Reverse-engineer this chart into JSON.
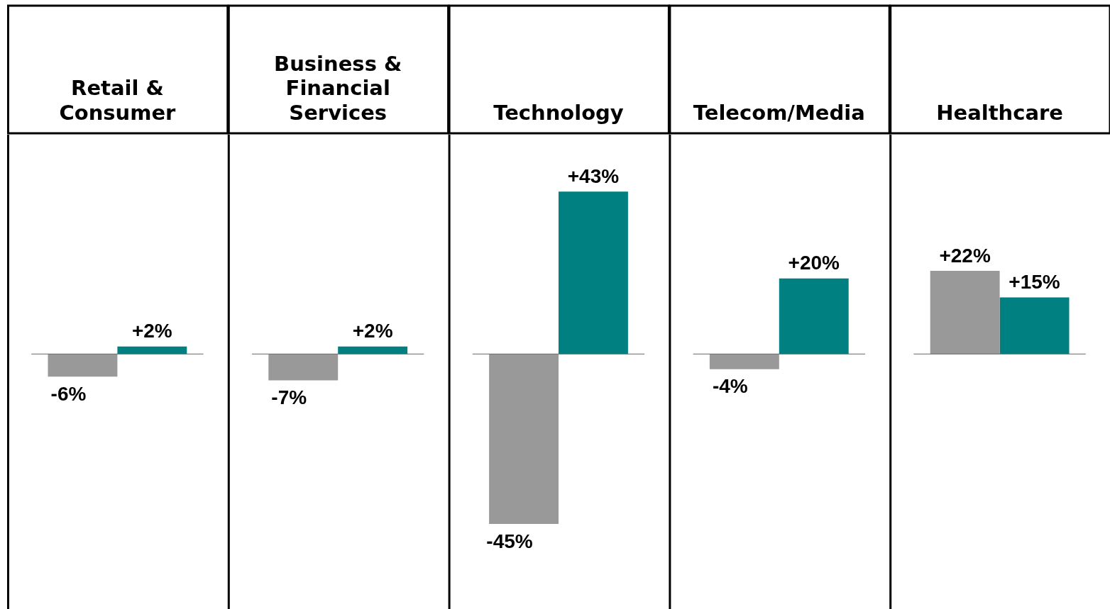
{
  "chart_data": {
    "type": "bar",
    "categories": [
      "Retail & Consumer",
      "Business & Financial Services",
      "Technology",
      "Telecom/Media",
      "Healthcare"
    ],
    "series": [
      {
        "color": "#999999",
        "values": [
          -6,
          -7,
          -45,
          -4,
          22
        ],
        "value_labels": [
          "-6%",
          "-7%",
          "-45%",
          "-4%",
          "+22%"
        ]
      },
      {
        "color": "#008080",
        "values": [
          2,
          2,
          43,
          20,
          15
        ],
        "value_labels": [
          "+2%",
          "+2%",
          "+43%",
          "+20%",
          "+15%"
        ]
      }
    ],
    "ref_lines": [
      {
        "axis": "y",
        "value": 0,
        "color": "#666666"
      }
    ],
    "grid": "x",
    "legend": false
  }
}
